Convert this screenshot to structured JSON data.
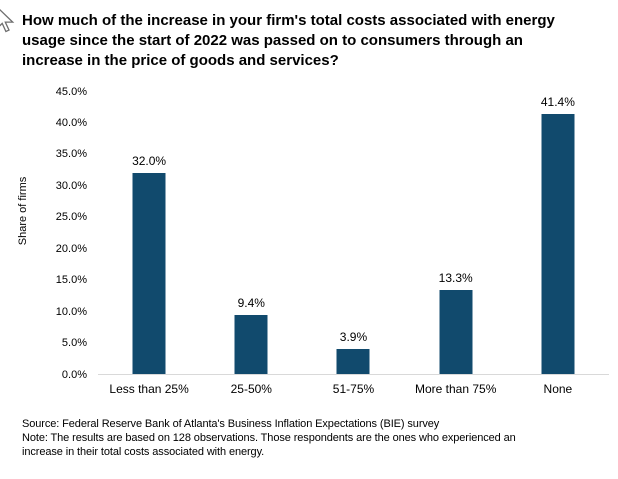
{
  "chart_data": {
    "type": "bar",
    "title": "How much of the increase in your firm's total costs associated with energy usage since the start of 2022 was passed on to consumers through an increase in the price of goods and services?",
    "title_lines": [
      "How much of the increase in your firm's total costs associated with energy",
      "usage since the start of 2022 was passed on to consumers through an",
      "increase in the price of goods and services?"
    ],
    "categories": [
      "Less than 25%",
      "25-50%",
      "51-75%",
      "More than 75%",
      "None"
    ],
    "values": [
      32.0,
      9.4,
      3.9,
      13.3,
      41.4
    ],
    "value_labels": [
      "32.0%",
      "9.4%",
      "3.9%",
      "13.3%",
      "41.4%"
    ],
    "xlabel": "",
    "ylabel": "Share of firms",
    "ylim": [
      0,
      45
    ],
    "ytick_values": [
      0,
      5,
      10,
      15,
      20,
      25,
      30,
      35,
      40,
      45
    ],
    "ytick_labels": [
      "0.0%",
      "5.0%",
      "10.0%",
      "15.0%",
      "20.0%",
      "25.0%",
      "30.0%",
      "35.0%",
      "40.0%",
      "45.0%"
    ],
    "grid": false,
    "legend": "none",
    "bar_color": "#114A6D",
    "axis_line_color": "#D9D9D9"
  },
  "footer": {
    "source": "Source: Federal Reserve Bank of Atlanta's Business Inflation Expectations (BIE) survey",
    "note": "Note: The results are based on 128 observations. Those respondents are the ones who experienced an increase in their total costs associated with energy.",
    "note_lines": [
      "Note: The results are based on 128 observations. Those respondents are the ones who experienced an",
      "increase in their total costs associated with energy."
    ]
  },
  "icons": {
    "cursor": "arrow-pointer-cursor"
  }
}
